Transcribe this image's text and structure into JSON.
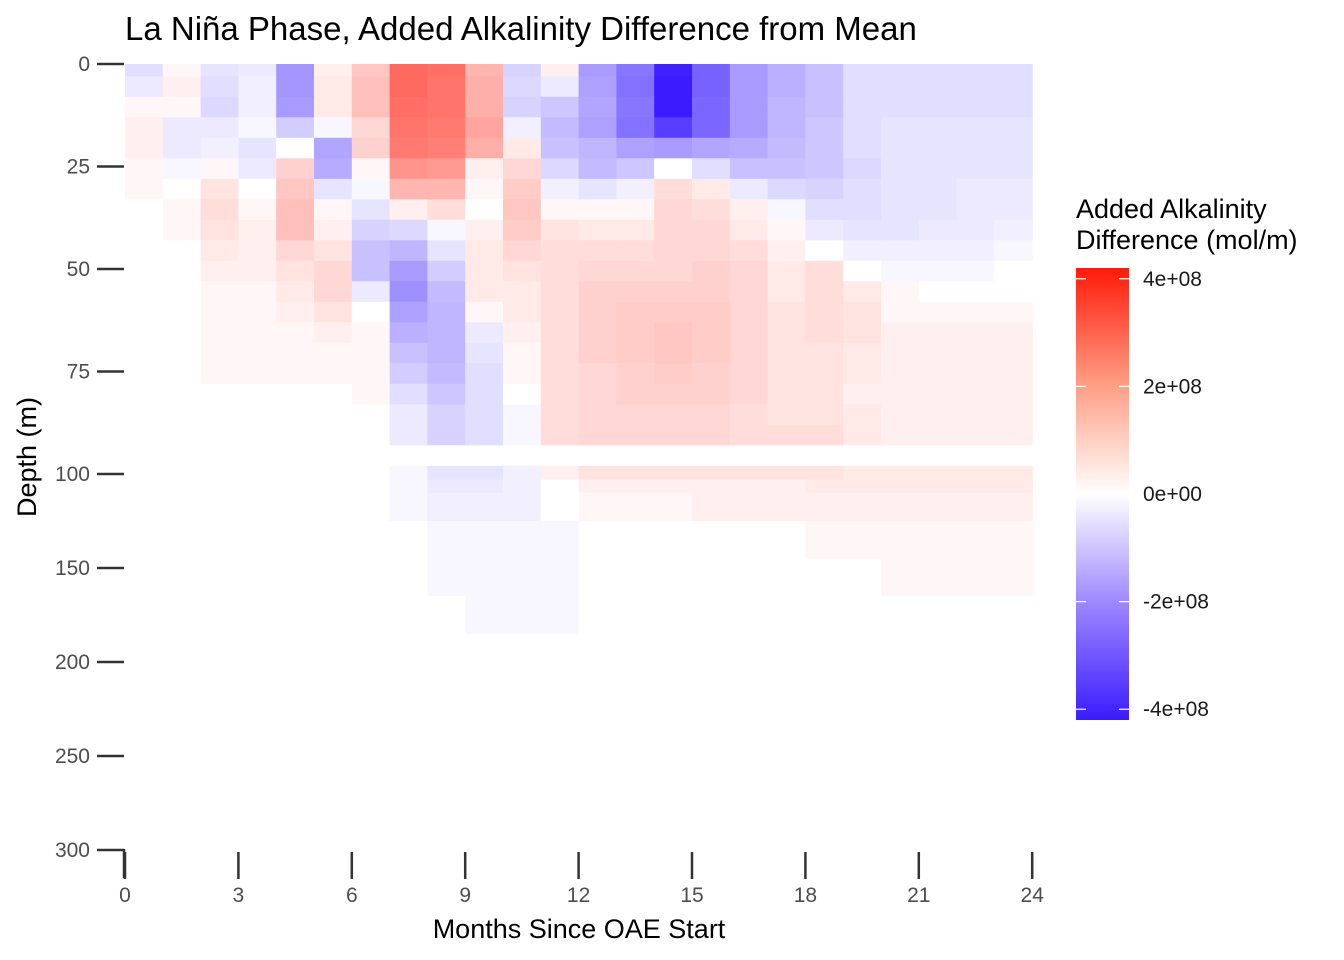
{
  "chart_data": {
    "type": "heatmap",
    "title": "La Niña Phase, Added Alkalinity Difference from Mean",
    "xlabel": "Months Since OAE Start",
    "ylabel": "Depth (m)",
    "x_ticks": [
      0,
      3,
      6,
      9,
      12,
      15,
      18,
      21,
      24
    ],
    "x_tick_labels": [
      "0",
      "3",
      "6",
      "9",
      "12",
      "15",
      "18",
      "21",
      "24"
    ],
    "y_ticks": [
      0,
      25,
      50,
      75,
      100,
      150,
      200,
      250,
      300
    ],
    "y_tick_labels": [
      "0",
      "25",
      "50",
      "75",
      "100",
      "150",
      "200",
      "250",
      "300"
    ],
    "xlim": [
      0,
      24
    ],
    "ylim": [
      300,
      0
    ],
    "y_scale": "piecewise-linear (0-100 m and 100-300 m segments)",
    "legend": {
      "title_lines": [
        "Added Alkalinity",
        "Difference (mol/m)"
      ],
      "placement": "right",
      "ticks": [
        400000000,
        200000000,
        0,
        -200000000,
        -400000000
      ],
      "tick_labels": [
        "4e+08",
        "2e+08",
        "0e+00",
        "-2e+08",
        "-4e+08"
      ],
      "limits": [
        -420000000,
        420000000
      ],
      "colors": {
        "low": "#3b1cff",
        "mid": "#ffffff",
        "high": "#ff1a0a"
      }
    },
    "months": [
      0,
      1,
      2,
      3,
      4,
      5,
      6,
      7,
      8,
      9,
      10,
      11,
      12,
      13,
      14,
      15,
      16,
      17,
      18,
      19,
      20,
      21,
      22,
      23
    ],
    "depth_layers": [
      [
        0,
        3
      ],
      [
        3,
        8
      ],
      [
        8,
        13
      ],
      [
        13,
        18
      ],
      [
        18,
        23
      ],
      [
        23,
        28
      ],
      [
        28,
        33
      ],
      [
        33,
        38
      ],
      [
        38,
        43
      ],
      [
        43,
        48
      ],
      [
        48,
        53
      ],
      [
        53,
        58
      ],
      [
        58,
        63
      ],
      [
        63,
        68
      ],
      [
        68,
        73
      ],
      [
        73,
        78
      ],
      [
        78,
        83
      ],
      [
        83,
        88
      ],
      [
        88,
        93
      ],
      [
        93,
        98
      ],
      [
        98,
        103
      ],
      [
        103,
        110
      ],
      [
        110,
        125
      ],
      [
        125,
        145
      ],
      [
        145,
        165
      ],
      [
        165,
        185
      ],
      [
        185,
        215
      ],
      [
        215,
        240
      ]
    ],
    "values_e8": [
      [
        -0.5,
        0.1,
        -0.4,
        -0.3,
        -1.8,
        0.2,
        0.9,
        2.6,
        2.5,
        1.2,
        -0.7,
        0.2,
        -1.7,
        -2.4,
        -4.1,
        -2.8,
        -1.7,
        -1.3,
        -1.0,
        -0.5,
        -0.5,
        -0.5,
        -0.5,
        -0.5
      ],
      [
        -0.3,
        0.2,
        -0.5,
        -0.2,
        -1.8,
        0.3,
        1.0,
        2.6,
        2.4,
        1.3,
        -0.6,
        -0.3,
        -1.6,
        -2.5,
        -4.2,
        -2.8,
        -1.7,
        -1.3,
        -1.0,
        -0.5,
        -0.5,
        -0.5,
        -0.5,
        -0.5
      ],
      [
        0.1,
        0.1,
        -0.6,
        -0.2,
        -1.7,
        0.3,
        1.0,
        2.5,
        2.4,
        1.3,
        -0.7,
        -0.9,
        -1.5,
        -2.4,
        -4.3,
        -2.7,
        -1.7,
        -1.2,
        -1.0,
        -0.5,
        -0.5,
        -0.5,
        -0.5,
        -0.5
      ],
      [
        0.2,
        -0.3,
        -0.3,
        -0.1,
        -0.8,
        -0.1,
        0.6,
        2.4,
        2.3,
        1.5,
        -0.2,
        -1.1,
        -1.6,
        -2.5,
        -3.5,
        -2.7,
        -1.7,
        -1.2,
        -0.9,
        -0.5,
        -0.4,
        -0.4,
        -0.4,
        -0.4
      ],
      [
        0.2,
        -0.3,
        -0.2,
        -0.4,
        0.0,
        -1.5,
        0.7,
        2.3,
        2.2,
        1.3,
        0.3,
        -1.0,
        -1.2,
        -1.6,
        -1.7,
        -1.5,
        -1.4,
        -1.1,
        -0.9,
        -0.5,
        -0.4,
        -0.4,
        -0.4,
        -0.4
      ],
      [
        0.1,
        -0.1,
        0.1,
        -0.3,
        0.7,
        -1.4,
        0.1,
        1.8,
        1.7,
        0.2,
        0.6,
        -0.6,
        -1.1,
        -0.9,
        0.0,
        -0.5,
        -1.0,
        -1.0,
        -0.9,
        -0.6,
        -0.4,
        -0.4,
        -0.4,
        -0.4
      ],
      [
        0.1,
        0.0,
        0.4,
        0.0,
        0.9,
        -0.4,
        -0.1,
        1.2,
        1.2,
        0.1,
        0.8,
        -0.2,
        -0.4,
        -0.2,
        0.5,
        0.3,
        -0.3,
        -0.6,
        -0.7,
        -0.5,
        -0.4,
        -0.4,
        -0.3,
        -0.3
      ],
      [
        0.0,
        0.1,
        0.5,
        0.1,
        1.0,
        0.1,
        -0.4,
        0.2,
        0.5,
        0.0,
        0.9,
        0.1,
        0.1,
        0.1,
        0.6,
        0.5,
        0.2,
        -0.1,
        -0.5,
        -0.5,
        -0.4,
        -0.4,
        -0.3,
        -0.3
      ],
      [
        0.0,
        0.1,
        0.4,
        0.2,
        1.0,
        0.2,
        -0.7,
        -0.6,
        -0.1,
        0.2,
        0.8,
        0.4,
        0.3,
        0.3,
        0.6,
        0.6,
        0.3,
        0.1,
        -0.3,
        -0.4,
        -0.4,
        -0.3,
        -0.3,
        -0.2
      ],
      [
        0.0,
        0.0,
        0.3,
        0.2,
        0.6,
        0.4,
        -1.0,
        -1.2,
        -0.4,
        0.3,
        0.6,
        0.5,
        0.5,
        0.5,
        0.6,
        0.6,
        0.5,
        0.2,
        0.0,
        -0.2,
        -0.2,
        -0.2,
        -0.2,
        -0.1
      ],
      [
        0.0,
        0.0,
        0.2,
        0.2,
        0.4,
        0.6,
        -1.0,
        -1.7,
        -0.8,
        0.3,
        0.4,
        0.5,
        0.6,
        0.6,
        0.6,
        0.7,
        0.6,
        0.3,
        0.5,
        0.0,
        -0.1,
        -0.1,
        -0.1,
        0.0
      ],
      [
        0.0,
        0.0,
        0.1,
        0.1,
        0.3,
        0.6,
        -0.3,
        -1.9,
        -1.1,
        0.3,
        0.3,
        0.5,
        0.7,
        0.7,
        0.7,
        0.7,
        0.6,
        0.3,
        0.5,
        0.3,
        0.1,
        0.0,
        0.0,
        0.0
      ],
      [
        0.0,
        0.0,
        0.1,
        0.1,
        0.2,
        0.4,
        0.0,
        -1.6,
        -1.2,
        0.1,
        0.3,
        0.5,
        0.7,
        0.8,
        0.8,
        0.8,
        0.6,
        0.4,
        0.5,
        0.4,
        0.1,
        0.1,
        0.1,
        0.1
      ],
      [
        0.0,
        0.0,
        0.1,
        0.1,
        0.1,
        0.2,
        0.1,
        -1.3,
        -1.2,
        -0.3,
        0.2,
        0.5,
        0.7,
        0.8,
        0.9,
        0.8,
        0.6,
        0.4,
        0.5,
        0.4,
        0.2,
        0.2,
        0.2,
        0.2
      ],
      [
        0.0,
        0.0,
        0.1,
        0.1,
        0.1,
        0.1,
        0.1,
        -1.0,
        -1.2,
        -0.4,
        0.1,
        0.5,
        0.7,
        0.8,
        0.9,
        0.8,
        0.6,
        0.4,
        0.4,
        0.3,
        0.2,
        0.2,
        0.2,
        0.2
      ],
      [
        0.0,
        0.0,
        0.1,
        0.1,
        0.1,
        0.1,
        0.1,
        -0.8,
        -1.1,
        -0.5,
        0.1,
        0.5,
        0.6,
        0.7,
        0.8,
        0.7,
        0.6,
        0.4,
        0.4,
        0.3,
        0.2,
        0.2,
        0.2,
        0.2
      ],
      [
        0.0,
        0.0,
        0.0,
        0.0,
        0.0,
        0.0,
        0.1,
        -0.5,
        -0.9,
        -0.5,
        0.0,
        0.5,
        0.6,
        0.7,
        0.7,
        0.7,
        0.6,
        0.4,
        0.4,
        0.2,
        0.2,
        0.2,
        0.2,
        0.2
      ],
      [
        0.0,
        0.0,
        0.0,
        0.0,
        0.0,
        0.0,
        0.0,
        -0.3,
        -0.7,
        -0.5,
        -0.1,
        0.5,
        0.6,
        0.6,
        0.6,
        0.6,
        0.5,
        0.4,
        0.4,
        0.3,
        0.2,
        0.2,
        0.2,
        0.2
      ],
      [
        0.0,
        0.0,
        0.0,
        0.0,
        0.0,
        0.0,
        0.0,
        -0.3,
        -0.7,
        -0.5,
        -0.1,
        0.5,
        0.6,
        0.6,
        0.6,
        0.6,
        0.5,
        0.5,
        0.5,
        0.3,
        0.2,
        0.2,
        0.2,
        0.2
      ],
      [
        0.0,
        0.0,
        0.0,
        0.0,
        0.0,
        0.0,
        0.0,
        0.0,
        0.0,
        0.0,
        0.0,
        0.0,
        0.0,
        0.0,
        0.0,
        0.0,
        0.0,
        0.0,
        0.0,
        0.0,
        0.0,
        0.0,
        0.0,
        0.0
      ],
      [
        0.0,
        0.0,
        0.0,
        0.0,
        0.0,
        0.0,
        0.0,
        -0.1,
        -0.4,
        -0.4,
        -0.2,
        0.2,
        0.4,
        0.4,
        0.4,
        0.4,
        0.4,
        0.4,
        0.4,
        0.3,
        0.3,
        0.3,
        0.3,
        0.3
      ],
      [
        0.0,
        0.0,
        0.0,
        0.0,
        0.0,
        0.0,
        0.0,
        -0.1,
        -0.3,
        -0.3,
        -0.2,
        0.0,
        0.2,
        0.2,
        0.2,
        0.2,
        0.2,
        0.2,
        0.3,
        0.3,
        0.3,
        0.3,
        0.3,
        0.3
      ],
      [
        0.0,
        0.0,
        0.0,
        0.0,
        0.0,
        0.0,
        0.0,
        -0.1,
        -0.2,
        -0.2,
        -0.2,
        0.0,
        0.1,
        0.1,
        0.1,
        0.2,
        0.2,
        0.2,
        0.2,
        0.2,
        0.2,
        0.2,
        0.2,
        0.2
      ],
      [
        0.0,
        0.0,
        0.0,
        0.0,
        0.0,
        0.0,
        0.0,
        0.0,
        -0.1,
        -0.1,
        -0.1,
        -0.1,
        0.0,
        0.0,
        0.0,
        0.0,
        0.0,
        0.0,
        0.1,
        0.1,
        0.1,
        0.1,
        0.1,
        0.1
      ],
      [
        0.0,
        0.0,
        0.0,
        0.0,
        0.0,
        0.0,
        0.0,
        0.0,
        -0.1,
        -0.1,
        -0.1,
        -0.1,
        0.0,
        0.0,
        0.0,
        0.0,
        0.0,
        0.0,
        0.0,
        0.0,
        0.1,
        0.1,
        0.1,
        0.1
      ],
      [
        0.0,
        0.0,
        0.0,
        0.0,
        0.0,
        0.0,
        0.0,
        0.0,
        0.0,
        -0.1,
        -0.1,
        -0.1,
        0.0,
        0.0,
        0.0,
        0.0,
        0.0,
        0.0,
        0.0,
        0.0,
        0.0,
        0.0,
        0.0,
        0.0
      ],
      [
        0.0,
        0.0,
        0.0,
        0.0,
        0.0,
        0.0,
        0.0,
        0.0,
        0.0,
        0.0,
        0.0,
        0.0,
        0.0,
        0.0,
        0.0,
        0.0,
        0.0,
        0.0,
        0.0,
        0.0,
        0.0,
        0.0,
        0.0,
        0.0
      ],
      [
        0.0,
        0.0,
        0.0,
        0.0,
        0.0,
        0.0,
        0.0,
        0.0,
        0.0,
        0.0,
        0.0,
        0.0,
        0.0,
        0.0,
        0.0,
        0.0,
        0.0,
        0.0,
        0.0,
        0.0,
        0.0,
        0.0,
        0.0,
        0.0
      ]
    ]
  }
}
